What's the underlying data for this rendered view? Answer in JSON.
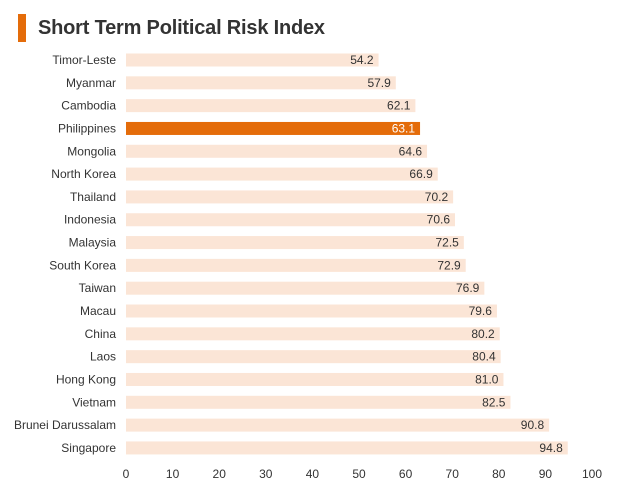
{
  "title": "Short Term Political Risk Index",
  "colors": {
    "accent": "#e46c0a",
    "bar": "#fbe5d6",
    "highlight": "#e46c0a"
  },
  "chart_data": {
    "type": "bar",
    "orientation": "horizontal",
    "title": "Short Term Political Risk Index",
    "categories": [
      "Timor-Leste",
      "Myanmar",
      "Cambodia",
      "Philippines",
      "Mongolia",
      "North Korea",
      "Thailand",
      "Indonesia",
      "Malaysia",
      "South Korea",
      "Taiwan",
      "Macau",
      "China",
      "Laos",
      "Hong Kong",
      "Vietnam",
      "Brunei Darussalam",
      "Singapore"
    ],
    "values": [
      54.2,
      57.9,
      62.1,
      63.1,
      64.6,
      66.9,
      70.2,
      70.6,
      72.5,
      72.9,
      76.9,
      79.6,
      80.2,
      80.4,
      81.0,
      82.5,
      90.8,
      94.8
    ],
    "value_labels": [
      "54.2",
      "57.9",
      "62.1",
      "63.1",
      "64.6",
      "66.9",
      "70.2",
      "70.6",
      "72.5",
      "72.9",
      "76.9",
      "79.6",
      "80.2",
      "80.4",
      "81.0",
      "82.5",
      "90.8",
      "94.8"
    ],
    "highlight": "Philippines",
    "xlim": [
      0,
      100
    ],
    "xticks": [
      "0",
      "10",
      "20",
      "30",
      "40",
      "50",
      "60",
      "70",
      "80",
      "90",
      "100"
    ],
    "grid": false,
    "legend": "none"
  }
}
